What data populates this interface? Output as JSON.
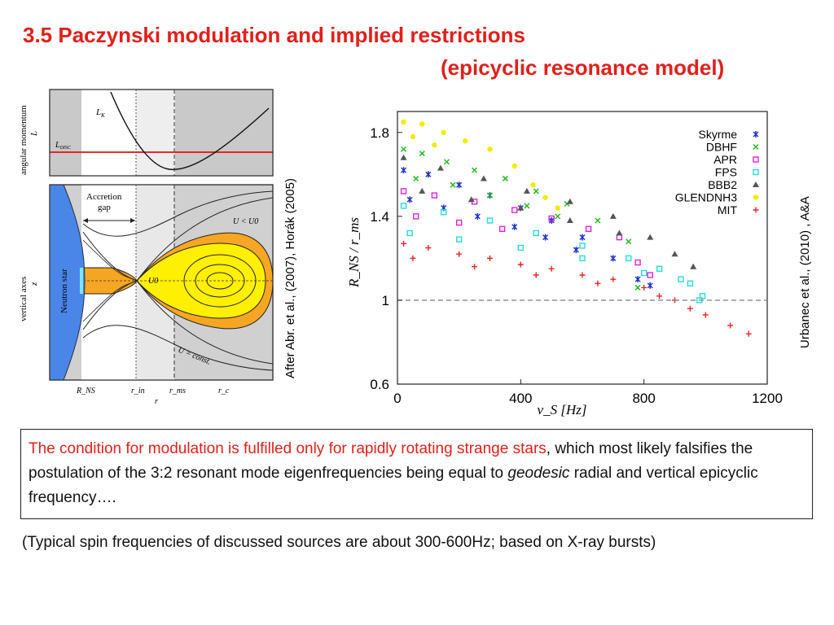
{
  "title": {
    "line1": "3.5 Paczynski modulation and implied restrictions",
    "line2": "(epicyclic resonance model)"
  },
  "left_figure": {
    "caption": "After Abr. et al., (2007), Horák (2005)",
    "top_panel": {
      "ylabel": "angular momentum",
      "ylabel_symbol": "L",
      "curve_label": "L_K",
      "disc_label": "L_DISC"
    },
    "bottom_panel": {
      "ylabel": "vertical axes",
      "ylabel_symbol": "z",
      "star_label": "Neutron star",
      "gap_label_1": "Accretion",
      "gap_label_2": "gap",
      "u_label_lt": "U < U0",
      "u_label_0": "U0",
      "u_label_const": "U = const."
    },
    "x_ticks": [
      "R_NS",
      "r_in",
      "r_ms",
      "r_c"
    ],
    "xlabel": "r"
  },
  "right_figure": {
    "caption": "Urbanec et al., (2010) , A&A",
    "chart_data": {
      "type": "scatter",
      "xlabel": "ν_S [Hz]",
      "ylabel": "R_NS / r_ms",
      "xlim": [
        0,
        1200
      ],
      "ylim": [
        0.6,
        1.9
      ],
      "x_ticks": [
        "0",
        "400",
        "800",
        "1200"
      ],
      "y_ticks": [
        "0.6",
        "1",
        "1.4",
        "1.8"
      ],
      "reference_line": 1.0,
      "legend_position": "top-right",
      "series": [
        {
          "name": "Skyrme",
          "color": "#2233cc",
          "marker": "*",
          "points": [
            [
              20,
              1.62
            ],
            [
              100,
              1.6
            ],
            [
              200,
              1.55
            ],
            [
              300,
              1.5
            ],
            [
              400,
              1.44
            ],
            [
              500,
              1.38
            ],
            [
              600,
              1.3
            ],
            [
              700,
              1.2
            ],
            [
              780,
              1.1
            ],
            [
              820,
              1.07
            ],
            [
              40,
              1.48
            ],
            [
              150,
              1.44
            ],
            [
              260,
              1.4
            ],
            [
              380,
              1.35
            ],
            [
              480,
              1.3
            ],
            [
              580,
              1.24
            ]
          ]
        },
        {
          "name": "DBHF",
          "color": "#22bb22",
          "marker": "x",
          "points": [
            [
              20,
              1.72
            ],
            [
              80,
              1.7
            ],
            [
              160,
              1.66
            ],
            [
              250,
              1.62
            ],
            [
              350,
              1.58
            ],
            [
              450,
              1.52
            ],
            [
              550,
              1.46
            ],
            [
              650,
              1.38
            ],
            [
              750,
              1.28
            ],
            [
              780,
              1.06
            ],
            [
              60,
              1.58
            ],
            [
              180,
              1.55
            ],
            [
              300,
              1.5
            ],
            [
              420,
              1.45
            ],
            [
              520,
              1.4
            ]
          ]
        },
        {
          "name": "APR",
          "color": "#dd22dd",
          "marker": "square",
          "points": [
            [
              20,
              1.52
            ],
            [
              120,
              1.5
            ],
            [
              250,
              1.47
            ],
            [
              380,
              1.43
            ],
            [
              500,
              1.39
            ],
            [
              620,
              1.34
            ],
            [
              720,
              1.3
            ],
            [
              780,
              1.18
            ],
            [
              820,
              1.12
            ],
            [
              60,
              1.4
            ],
            [
              200,
              1.37
            ],
            [
              340,
              1.34
            ]
          ]
        },
        {
          "name": "FPS",
          "color": "#22dddd",
          "marker": "square",
          "points": [
            [
              20,
              1.45
            ],
            [
              150,
              1.42
            ],
            [
              300,
              1.38
            ],
            [
              450,
              1.32
            ],
            [
              600,
              1.26
            ],
            [
              750,
              1.2
            ],
            [
              850,
              1.15
            ],
            [
              950,
              1.08
            ],
            [
              990,
              1.02
            ],
            [
              980,
              1.0
            ],
            [
              40,
              1.32
            ],
            [
              200,
              1.29
            ],
            [
              400,
              1.25
            ],
            [
              600,
              1.2
            ],
            [
              800,
              1.13
            ],
            [
              920,
              1.1
            ]
          ]
        },
        {
          "name": "BBB2",
          "color": "#555555",
          "marker": "triangle",
          "points": [
            [
              20,
              1.68
            ],
            [
              140,
              1.63
            ],
            [
              280,
              1.58
            ],
            [
              420,
              1.52
            ],
            [
              560,
              1.47
            ],
            [
              700,
              1.4
            ],
            [
              820,
              1.3
            ],
            [
              900,
              1.22
            ],
            [
              960,
              1.16
            ],
            [
              80,
              1.52
            ],
            [
              240,
              1.48
            ],
            [
              400,
              1.44
            ],
            [
              560,
              1.38
            ],
            [
              720,
              1.32
            ]
          ]
        },
        {
          "name": "GLENDNH3",
          "color": "#eeee00",
          "marker": "circle",
          "points": [
            [
              20,
              1.85
            ],
            [
              80,
              1.84
            ],
            [
              150,
              1.8
            ],
            [
              220,
              1.76
            ],
            [
              300,
              1.72
            ],
            [
              380,
              1.64
            ],
            [
              440,
              1.55
            ],
            [
              480,
              1.49
            ],
            [
              520,
              1.44
            ],
            [
              50,
              1.78
            ],
            [
              120,
              1.74
            ]
          ]
        },
        {
          "name": "MIT",
          "color": "#ee2222",
          "marker": "+",
          "points": [
            [
              20,
              1.27
            ],
            [
              100,
              1.25
            ],
            [
              200,
              1.22
            ],
            [
              300,
              1.2
            ],
            [
              400,
              1.17
            ],
            [
              500,
              1.15
            ],
            [
              600,
              1.12
            ],
            [
              700,
              1.1
            ],
            [
              800,
              1.06
            ],
            [
              900,
              1.0
            ],
            [
              1000,
              0.93
            ],
            [
              1080,
              0.88
            ],
            [
              1140,
              0.84
            ],
            [
              50,
              1.2
            ],
            [
              250,
              1.16
            ],
            [
              450,
              1.12
            ],
            [
              650,
              1.08
            ],
            [
              850,
              1.02
            ],
            [
              950,
              0.96
            ]
          ]
        }
      ]
    }
  },
  "text_box": {
    "red_part": "The condition for modulation is fulfilled only for rapidly rotating strange stars",
    "rest_1": ", which most likely falsifies the postulation of the 3:2 resonant mode eigenfrequencies being equal to ",
    "italic": "geodesic",
    "rest_2": " radial and vertical epicyclic frequency…."
  },
  "note": "(Typical spin frequencies of discussed sources are about 300-600Hz; based on X-ray bursts)"
}
